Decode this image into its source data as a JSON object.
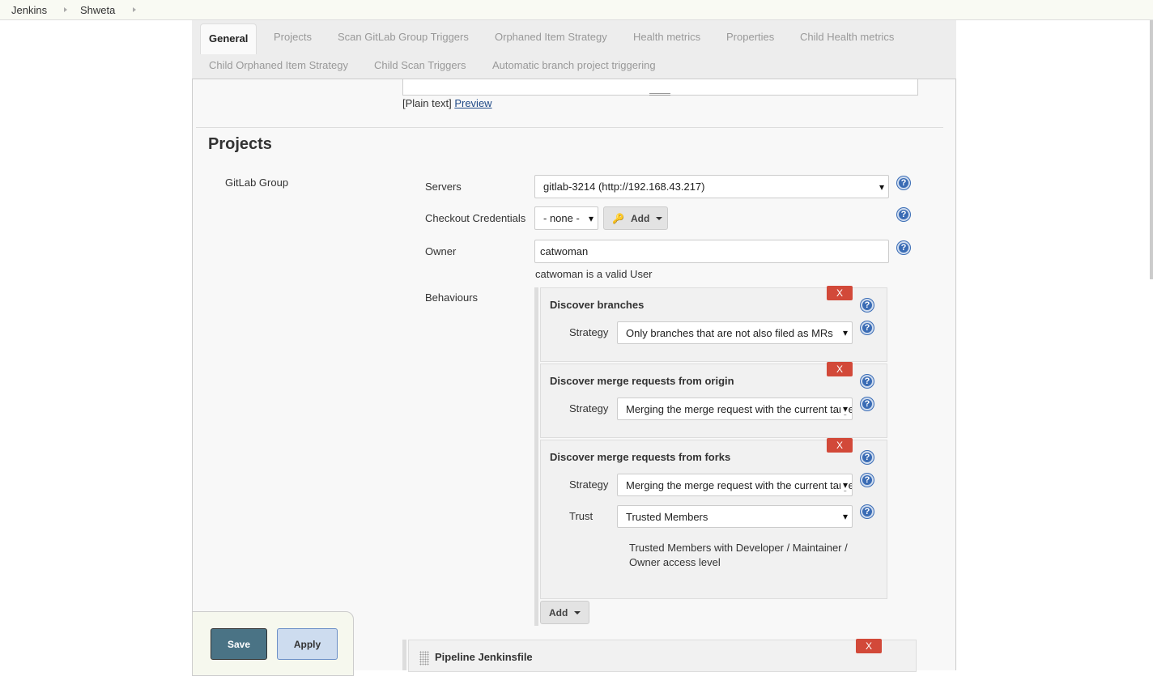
{
  "breadcrumbs": [
    "Jenkins",
    "Shweta"
  ],
  "tabs": [
    "General",
    "Projects",
    "Scan GitLab Group Triggers",
    "Orphaned Item Strategy",
    "Health metrics",
    "Properties",
    "Child Health metrics",
    "Child Orphaned Item Strategy",
    "Child Scan Triggers",
    "Automatic branch project triggering"
  ],
  "description": {
    "format": "[Plain text]",
    "preview": "Preview"
  },
  "section": {
    "title": "Projects",
    "source": "GitLab Group"
  },
  "fields": {
    "servers_label": "Servers",
    "servers_value": "gitlab-3214 (http://192.168.43.217)",
    "credentials_label": "Checkout Credentials",
    "credentials_value": "- none -",
    "add_label": "Add",
    "owner_label": "Owner",
    "owner_value": "catwoman",
    "owner_validation": "catwoman is a valid User",
    "behaviours_label": "Behaviours"
  },
  "behaviours": [
    {
      "title": "Discover branches",
      "strategy_label": "Strategy",
      "strategy": "Only branches that are not also filed as MRs"
    },
    {
      "title": "Discover merge requests from origin",
      "strategy_label": "Strategy",
      "strategy": "Merging the merge request with the current target branch revision"
    },
    {
      "title": "Discover merge requests from forks",
      "strategy_label": "Strategy",
      "strategy": "Merging the merge request with the current target branch revision",
      "trust_label": "Trust",
      "trust": "Trusted Members",
      "trust_help": "Trusted Members with Developer / Maintainer / Owner access level"
    }
  ],
  "remove_label": "X",
  "behaviours_add": "Add",
  "pipeline": {
    "title": "Pipeline Jenkinsfile"
  },
  "buttons": {
    "save": "Save",
    "apply": "Apply"
  },
  "help_glyph": "?"
}
